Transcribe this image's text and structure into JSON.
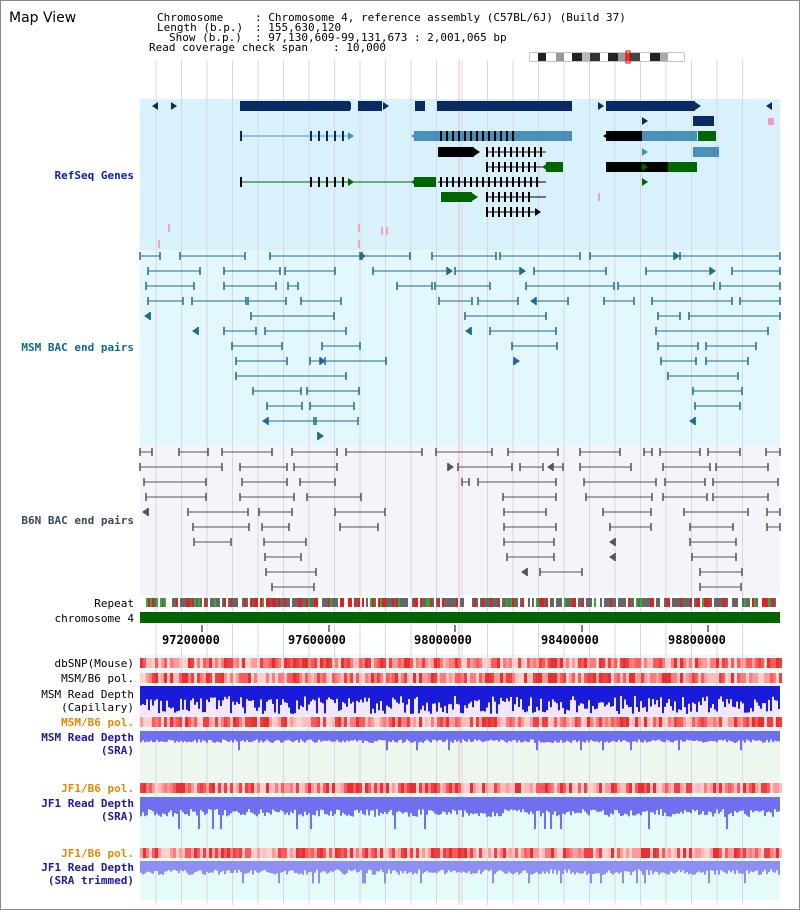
{
  "title": "Map View",
  "info": {
    "chromosome_label": "Chromosome",
    "chromosome_value": ": Chromosome 4, reference assembly (C57BL/6J) (Build 37)",
    "length_label": "Length (b.p.)",
    "length_value": ": 155,630,120",
    "show_label": "Show (b.p.)",
    "show_value": ": 97,130,609-99,131,673 : 2,001,065 bp",
    "coverage_label": "Read coverage check span",
    "coverage_value": ": 10,000"
  },
  "tracks": {
    "refseq": "RefSeq Genes",
    "msm_bac": "MSM BAC end pairs",
    "b6n_bac": "B6N BAC end pairs",
    "repeat": "Repeat",
    "chromosome": "chromosome 4",
    "dbsnp": "dbSNP(Mouse)",
    "msm_b6_pol": "MSM/B6 pol.",
    "msm_read_depth_cap_1": "MSM Read Depth",
    "msm_read_depth_cap_2": "(Capillary)",
    "msm_b6_pol_2": "MSM/B6 pol.",
    "msm_read_depth_sra_1": "MSM Read Depth",
    "msm_read_depth_sra_2": "(SRA)",
    "jf1_b6_pol": "JF1/B6 pol.",
    "jf1_read_depth_sra_1": "JF1 Read Depth",
    "jf1_read_depth_sra_2": "(SRA)",
    "jf1_b6_pol_2": "JF1/B6 pol.",
    "jf1_read_depth_trim_1": "JF1 Read Depth",
    "jf1_read_depth_trim_2": "(SRA trimmed)"
  },
  "axis": {
    "ticks": [
      "97200000",
      "97600000",
      "98000000",
      "98400000",
      "98800000"
    ]
  },
  "colors": {
    "refseq_bg": "#d9f1fb",
    "msm_bg": "#e2f8fc",
    "b6n_bg": "#f4f4fb",
    "lower_bg": "#e4fbfa",
    "gene_dark": "#0b2a63",
    "gene_mid": "#4a8fb8",
    "gene_green": "#006600",
    "msm_line": "#1f6c8a",
    "b6n_line": "#555555",
    "chrom_green": "#006400",
    "depth_blue": "#1a1ad9",
    "depth_light": "#6f6ff0"
  }
}
